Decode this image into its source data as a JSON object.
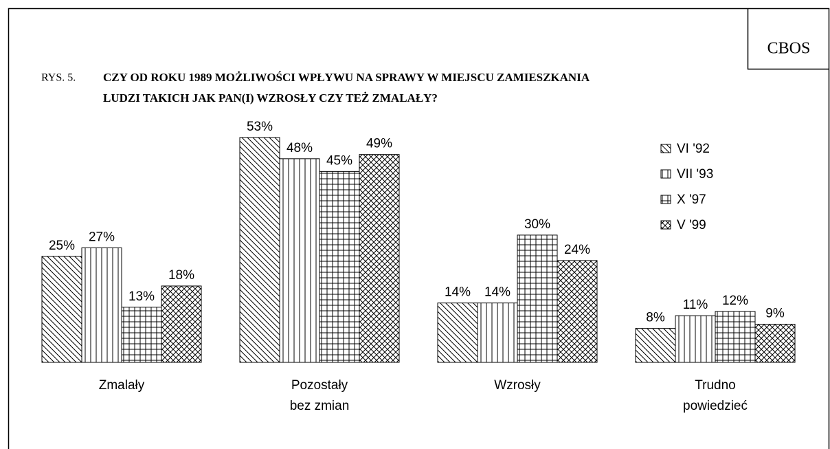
{
  "chart_data": {
    "type": "bar",
    "logo": "CBOS",
    "figure_number": "RYS. 5.",
    "title": [
      "CZY OD ROKU 1989 MOŻLIWOŚCI WPŁYWU NA SPRAWY W MIEJSCU ZAMIESZKANIA",
      "LUDZI TAKICH JAK PAN(I) WZROSŁY CZY TEŻ ZMALAŁY?"
    ],
    "categories": [
      [
        "Zmalały"
      ],
      [
        "Pozostały",
        "bez zmian"
      ],
      [
        "Wzrosły"
      ],
      [
        "Trudno",
        "powiedzieć"
      ]
    ],
    "series": [
      {
        "name": "VI '92",
        "pattern": "diagonal",
        "color": "#000000",
        "values": [
          25,
          53,
          14,
          8
        ],
        "value_labels": [
          "25%",
          "53%",
          "14%",
          "8%"
        ]
      },
      {
        "name": "VII '93",
        "pattern": "vertical",
        "color": "#000000",
        "values": [
          27,
          48,
          14,
          11
        ],
        "value_labels": [
          "27%",
          "48%",
          "14%",
          "11%"
        ]
      },
      {
        "name": "X '97",
        "pattern": "grid",
        "color": "#000000",
        "values": [
          13,
          45,
          30,
          12
        ],
        "value_labels": [
          "13%",
          "45%",
          "30%",
          "12%"
        ]
      },
      {
        "name": "V '99",
        "pattern": "crosshatch",
        "color": "#000000",
        "values": [
          18,
          49,
          24,
          9
        ],
        "value_labels": [
          "18%",
          "49%",
          "24%",
          "9%"
        ]
      }
    ],
    "legend": "right"
  }
}
